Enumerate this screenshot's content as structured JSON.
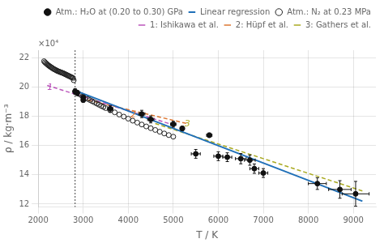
{
  "chart_data": {
    "type": "scatter",
    "xlabel": "T / K",
    "ylabel": "ρ / kg·m⁻³",
    "subtitle": "×10⁴",
    "xlim": [
      2000,
      9500
    ],
    "ylim": [
      11800,
      22500
    ],
    "xticks": [
      2000,
      3000,
      4000,
      5000,
      6000,
      7000,
      8000,
      9000
    ],
    "yticks": [
      {
        "value": 12000,
        "label": "12"
      },
      {
        "value": 14000,
        "label": "14"
      },
      {
        "value": 16000,
        "label": "16"
      },
      {
        "value": 18000,
        "label": "18"
      },
      {
        "value": 20000,
        "label": "20"
      },
      {
        "value": 22000,
        "label": "22"
      }
    ],
    "grid": true,
    "legend": "upper right",
    "series": [
      {
        "name": "Atm.: N₂ at 0.23 MPa",
        "type": "scatter",
        "marker": "open_circle",
        "color": "#222222",
        "x": [
          2130,
          2150,
          2170,
          2190,
          2210,
          2230,
          2250,
          2270,
          2290,
          2310,
          2330,
          2350,
          2370,
          2390,
          2410,
          2430,
          2450,
          2470,
          2490,
          2510,
          2530,
          2550,
          2570,
          2590,
          2610,
          2630,
          2650,
          2670,
          2690,
          2710,
          2730,
          2750,
          2770,
          2790,
          2820,
          2860,
          2900,
          2950,
          3000,
          3050,
          3100,
          3150,
          3200,
          3250,
          3300,
          3350,
          3400,
          3450,
          3500,
          3600,
          3700,
          3800,
          3900,
          4000,
          4100,
          4200,
          4300,
          4400,
          4500,
          4600,
          4700,
          4800,
          4900,
          5000
        ],
        "values": [
          21750,
          21680,
          21620,
          21570,
          21510,
          21460,
          21420,
          21370,
          21340,
          21290,
          21250,
          21210,
          21180,
          21150,
          21110,
          21080,
          21060,
          21030,
          21010,
          20980,
          20960,
          20940,
          20910,
          20880,
          20850,
          20820,
          20790,
          20760,
          20730,
          20700,
          20670,
          20640,
          20610,
          20450,
          19700,
          19600,
          19530,
          19440,
          19350,
          19270,
          19180,
          19100,
          19020,
          18940,
          18860,
          18780,
          18700,
          18630,
          18550,
          18400,
          18260,
          18110,
          17970,
          17830,
          17690,
          17560,
          17430,
          17300,
          17180,
          17060,
          16940,
          16820,
          16710,
          16600
        ]
      },
      {
        "name": "Atm.: H₂O at (0.20 to 0.30) GPa",
        "type": "scatter",
        "marker": "circle",
        "color": "#111111",
        "x": [
          2820,
          2870,
          3000,
          3000,
          3600,
          4300,
          4500,
          5000,
          5200,
          5500,
          5800,
          6000,
          6200,
          6500,
          6700,
          6800,
          7000,
          8200,
          8700,
          9050
        ],
        "values": [
          19680,
          19580,
          19270,
          19100,
          18500,
          18150,
          17780,
          17450,
          17160,
          15430,
          16700,
          15270,
          15200,
          15100,
          15000,
          14420,
          14120,
          13400,
          13000,
          12700
        ],
        "y_err": [
          200,
          180,
          180,
          150,
          220,
          250,
          240,
          200,
          150,
          300,
          150,
          300,
          300,
          350,
          350,
          320,
          300,
          400,
          600,
          850
        ],
        "x_err": [
          30,
          30,
          40,
          40,
          60,
          70,
          70,
          60,
          50,
          100,
          60,
          100,
          100,
          120,
          120,
          100,
          100,
          200,
          250,
          300
        ]
      },
      {
        "name": "Linear regression",
        "type": "line",
        "line_style": "solid",
        "color": "#2070b8",
        "x": [
          2780,
          9200
        ],
        "values": [
          19800,
          12200
        ]
      },
      {
        "name": "1: Ishikawa et al.",
        "type": "line",
        "line_style": "dashed",
        "color": "#bb55bb",
        "x": [
          2200,
          4900
        ],
        "values": [
          20100,
          17500
        ]
      },
      {
        "name": "2: Hüpf et al.",
        "type": "line",
        "line_style": "dashed",
        "color": "#dd7733",
        "x": [
          3100,
          5300
        ],
        "values": [
          19100,
          17500
        ]
      },
      {
        "name": "3: Gathers et al.",
        "type": "line",
        "line_style": "dashed",
        "color": "#aaaa22",
        "x": [
          4600,
          9200
        ],
        "values": [
          17500,
          12900
        ]
      }
    ],
    "vlines": [
      {
        "x": 2820,
        "color": "#444444",
        "line_style": "dotted"
      }
    ],
    "annotations": [
      {
        "text": "1",
        "x": 2200,
        "y": 19950,
        "color": "#bb55bb"
      },
      {
        "text": "2",
        "x": 4050,
        "y": 18050,
        "color": "#dd7733"
      },
      {
        "text": "3",
        "x": 5250,
        "y": 17450,
        "color": "#aaaa22"
      }
    ]
  }
}
